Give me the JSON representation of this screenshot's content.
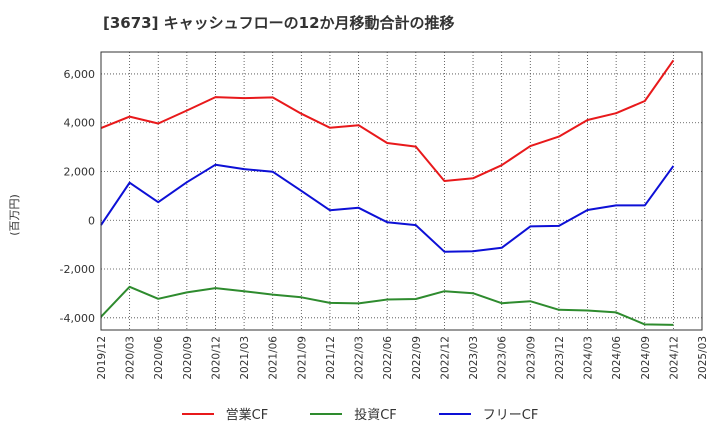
{
  "chart_data": {
    "type": "line",
    "title": "[3673]  キャッシュフローの12か月移動合計の推移",
    "ylabel": "(百万円)",
    "xlabel": "",
    "ylim": [
      -4500,
      6900
    ],
    "yticks": [
      -4000,
      -2000,
      0,
      2000,
      4000,
      6000
    ],
    "ytick_labels": [
      "-4,000",
      "-2,000",
      "0",
      "2,000",
      "4,000",
      "6,000"
    ],
    "categories": [
      "2019/12",
      "2020/03",
      "2020/06",
      "2020/09",
      "2020/12",
      "2021/03",
      "2021/06",
      "2021/09",
      "2021/12",
      "2022/03",
      "2022/06",
      "2022/09",
      "2022/12",
      "2023/03",
      "2023/06",
      "2023/09",
      "2023/12",
      "2024/03",
      "2024/06",
      "2024/09",
      "2024/12",
      "2025/03"
    ],
    "grid": true,
    "legend_position": "bottom",
    "series": [
      {
        "name": "営業CF",
        "color": "#e8191b",
        "values": [
          3780,
          4250,
          3970,
          4500,
          5050,
          5010,
          5040,
          4370,
          3790,
          3900,
          3170,
          3020,
          1610,
          1720,
          2260,
          3040,
          3430,
          4110,
          4390,
          4890,
          6560,
          null
        ]
      },
      {
        "name": "投資CF",
        "color": "#2e8b2e",
        "values": [
          -3960,
          -2730,
          -3220,
          -2960,
          -2780,
          -2910,
          -3050,
          -3160,
          -3390,
          -3410,
          -3250,
          -3230,
          -2910,
          -2990,
          -3400,
          -3320,
          -3670,
          -3700,
          -3780,
          -4270,
          -4290,
          null
        ]
      },
      {
        "name": "フリーCF",
        "color": "#0d10d6",
        "values": [
          -200,
          1540,
          740,
          1560,
          2280,
          2100,
          1990,
          1210,
          410,
          510,
          -80,
          -200,
          -1290,
          -1270,
          -1130,
          -250,
          -230,
          420,
          610,
          610,
          2230,
          null
        ]
      }
    ]
  }
}
